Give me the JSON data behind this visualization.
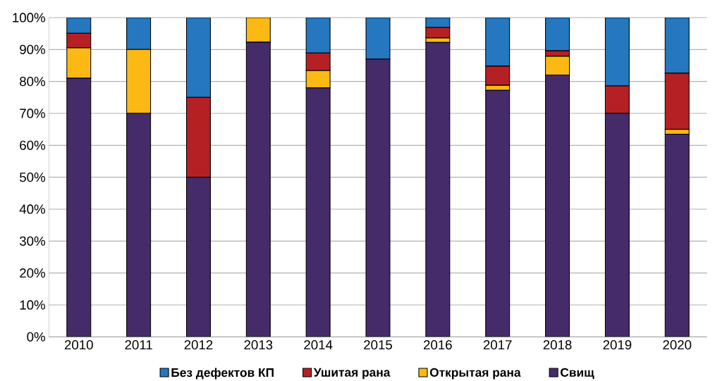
{
  "chart_data": {
    "type": "bar",
    "stacked": true,
    "categories": [
      "2010",
      "2011",
      "2012",
      "2013",
      "2014",
      "2015",
      "2016",
      "2017",
      "2018",
      "2019",
      "2020"
    ],
    "series": [
      {
        "name": "Свищ",
        "color": "#452b69",
        "values": [
          81,
          70,
          50,
          92.3,
          78,
          87,
          92.2,
          77.2,
          82,
          70,
          63.5
        ]
      },
      {
        "name": "Открытая рана",
        "color": "#fdb913",
        "values": [
          9.5,
          20,
          null,
          7.7,
          5.4,
          null,
          1.4,
          1.6,
          5.9,
          null,
          1.5
        ]
      },
      {
        "name": "Ушитая рана",
        "color": "#b52025",
        "values": [
          4.6,
          null,
          25,
          null,
          5.5,
          null,
          3.3,
          6,
          1.7,
          8.6,
          17.6
        ]
      },
      {
        "name": "Без дефектов КП",
        "color": "#2577c0",
        "values": [
          4.9,
          10,
          25,
          null,
          11.1,
          13,
          3.1,
          15.2,
          10.4,
          21.4,
          17.4
        ]
      }
    ],
    "ylim": [
      0,
      100
    ],
    "yticks": [
      {
        "value": 0,
        "label": "0%"
      },
      {
        "value": 10,
        "label": "10%"
      },
      {
        "value": 20,
        "label": "20%"
      },
      {
        "value": 30,
        "label": "30%"
      },
      {
        "value": 40,
        "label": "40%"
      },
      {
        "value": 50,
        "label": "50%"
      },
      {
        "value": 60,
        "label": "60%"
      },
      {
        "value": 70,
        "label": "70%"
      },
      {
        "value": 80,
        "label": "80%"
      },
      {
        "value": 90,
        "label": "90%"
      },
      {
        "value": 100,
        "label": "100%"
      }
    ],
    "grid": "y",
    "legend": "bottom"
  }
}
